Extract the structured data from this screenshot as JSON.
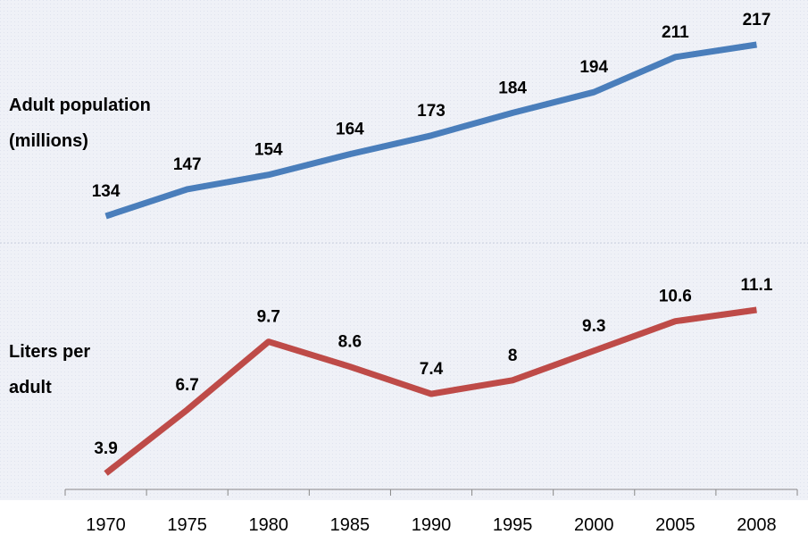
{
  "chart_data": {
    "type": "line",
    "categories": [
      "1970",
      "1975",
      "1980",
      "1985",
      "1990",
      "1995",
      "2000",
      "2005",
      "2008"
    ],
    "series": [
      {
        "name": "Adult population (millions)",
        "color": "#4a7ebb",
        "values": [
          134,
          147,
          154,
          164,
          173,
          184,
          194,
          211,
          217
        ]
      },
      {
        "name": "Liters per adult",
        "color": "#be4b48",
        "values": [
          3.9,
          6.7,
          9.7,
          8.6,
          7.4,
          8,
          9.3,
          10.6,
          11.1
        ]
      }
    ]
  }
}
